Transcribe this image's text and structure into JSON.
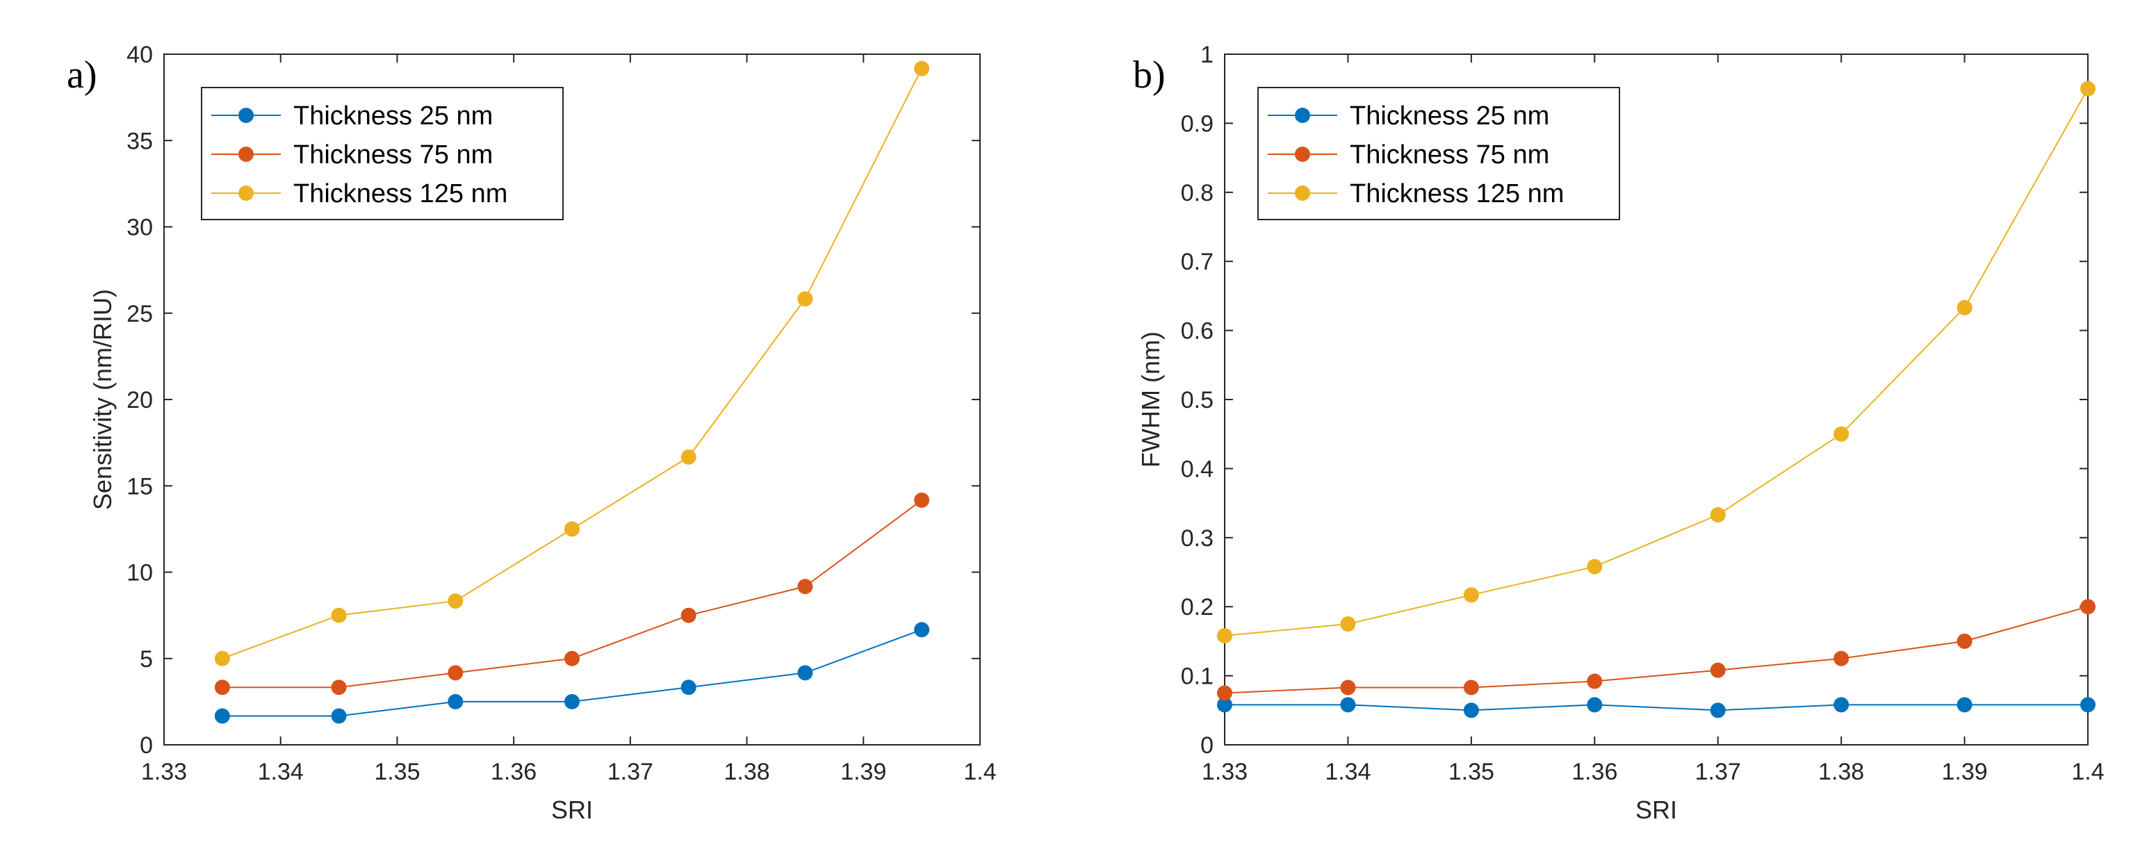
{
  "chart_data": [
    {
      "type": "line",
      "panel_label": "a)",
      "xlabel": "SRI",
      "ylabel": "Sensitivity (nm/RIU)",
      "xlim": [
        1.33,
        1.4
      ],
      "ylim": [
        0,
        40
      ],
      "xticks": [
        "1.33",
        "1.34",
        "1.35",
        "1.36",
        "1.37",
        "1.38",
        "1.39",
        "1.4"
      ],
      "yticks": [
        "0",
        "5",
        "10",
        "15",
        "20",
        "25",
        "30",
        "35",
        "40"
      ],
      "legend_position": "top-left",
      "grid": false,
      "x": [
        1.335,
        1.345,
        1.355,
        1.365,
        1.375,
        1.385,
        1.395
      ],
      "series": [
        {
          "name": "Thickness 25 nm",
          "color": "#0072BD",
          "values": [
            1.67,
            1.67,
            2.5,
            2.5,
            3.33,
            4.17,
            6.67
          ]
        },
        {
          "name": "Thickness 75 nm",
          "color": "#D95319",
          "values": [
            3.33,
            3.33,
            4.17,
            5.0,
            7.5,
            9.17,
            14.17
          ]
        },
        {
          "name": "Thickness 125 nm",
          "color": "#EDB120",
          "values": [
            5.0,
            7.5,
            8.33,
            12.5,
            16.67,
            25.83,
            39.17
          ]
        }
      ]
    },
    {
      "type": "line",
      "panel_label": "b)",
      "xlabel": "SRI",
      "ylabel": "FWHM (nm)",
      "xlim": [
        1.33,
        1.4
      ],
      "ylim": [
        0,
        1
      ],
      "xticks": [
        "1.33",
        "1.34",
        "1.35",
        "1.36",
        "1.37",
        "1.38",
        "1.39",
        "1.4"
      ],
      "yticks": [
        "0",
        "0.1",
        "0.2",
        "0.3",
        "0.4",
        "0.5",
        "0.6",
        "0.7",
        "0.8",
        "0.9",
        "1"
      ],
      "legend_position": "top-left",
      "grid": false,
      "x": [
        1.33,
        1.34,
        1.35,
        1.36,
        1.37,
        1.38,
        1.39,
        1.4
      ],
      "series": [
        {
          "name": "Thickness 25 nm",
          "color": "#0072BD",
          "values": [
            0.058,
            0.058,
            0.05,
            0.058,
            0.05,
            0.058,
            0.058,
            0.058
          ]
        },
        {
          "name": "Thickness 75 nm",
          "color": "#D95319",
          "values": [
            0.075,
            0.083,
            0.083,
            0.092,
            0.108,
            0.125,
            0.15,
            0.2
          ]
        },
        {
          "name": "Thickness 125 nm",
          "color": "#EDB120",
          "values": [
            0.158,
            0.175,
            0.217,
            0.258,
            0.333,
            0.45,
            0.633,
            0.95
          ]
        }
      ]
    }
  ]
}
